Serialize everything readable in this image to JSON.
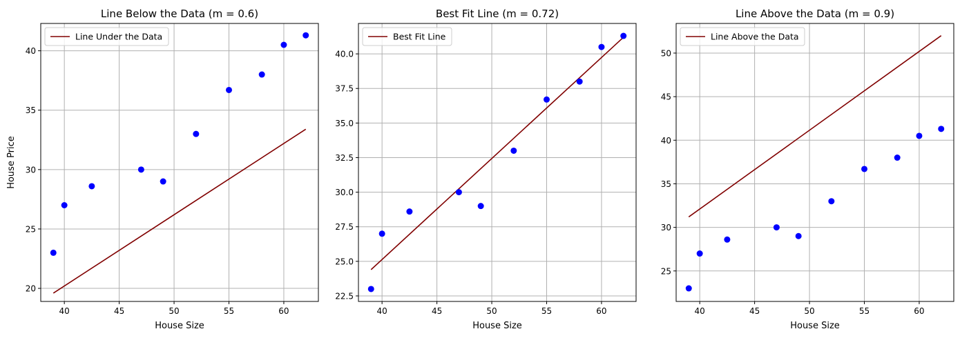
{
  "chart_data": [
    {
      "type": "scatter",
      "title": "Line Below the Data (m = 0.6)",
      "xlabel": "House Size",
      "ylabel": "House Price",
      "xlim": [
        37.85,
        63.15
      ],
      "ylim": [
        18.9,
        42.3
      ],
      "xticks": [
        40,
        45,
        50,
        55,
        60
      ],
      "yticks": [
        20,
        25,
        30,
        35,
        40
      ],
      "grid": true,
      "legend_position": "upper-left",
      "point_color": "#0000ff",
      "line_color": "#800000",
      "points": {
        "x": [
          39,
          40,
          42.5,
          47,
          49,
          52,
          55,
          58,
          60,
          62
        ],
        "y": [
          23,
          27,
          28.6,
          30,
          29,
          33,
          36.7,
          38,
          40.5,
          41.3
        ]
      },
      "line": {
        "name": "Line Under the Data",
        "x": [
          39,
          62
        ],
        "y": [
          19.6,
          33.4
        ]
      }
    },
    {
      "type": "scatter",
      "title": "Best Fit Line (m = 0.72)",
      "xlabel": "House Size",
      "ylabel": "",
      "xlim": [
        37.85,
        63.15
      ],
      "ylim": [
        22.1,
        42.2
      ],
      "xticks": [
        40,
        45,
        50,
        55,
        60
      ],
      "yticks": [
        22.5,
        25.0,
        27.5,
        30.0,
        32.5,
        35.0,
        37.5,
        40.0
      ],
      "ytick_labels": [
        "22.5",
        "25.0",
        "27.5",
        "30.0",
        "32.5",
        "35.0",
        "37.5",
        "40.0"
      ],
      "grid": true,
      "legend_position": "upper-left",
      "point_color": "#0000ff",
      "line_color": "#800000",
      "points": {
        "x": [
          39,
          40,
          42.5,
          47,
          49,
          52,
          55,
          58,
          60,
          62
        ],
        "y": [
          23,
          27,
          28.6,
          30,
          29,
          33,
          36.7,
          38,
          40.5,
          41.3
        ]
      },
      "line": {
        "name": "Best Fit Line",
        "x": [
          39,
          62
        ],
        "y": [
          24.4,
          41.2
        ]
      }
    },
    {
      "type": "scatter",
      "title": "Line Above the Data (m = 0.9)",
      "xlabel": "House Size",
      "ylabel": "",
      "xlim": [
        37.85,
        63.15
      ],
      "ylim": [
        21.5,
        53.4
      ],
      "xticks": [
        40,
        45,
        50,
        55,
        60
      ],
      "yticks": [
        25,
        30,
        35,
        40,
        45,
        50
      ],
      "grid": true,
      "legend_position": "upper-left",
      "point_color": "#0000ff",
      "line_color": "#800000",
      "points": {
        "x": [
          39,
          40,
          42.5,
          47,
          49,
          52,
          55,
          58,
          60,
          62
        ],
        "y": [
          23,
          27,
          28.6,
          30,
          29,
          33,
          36.7,
          38,
          40.5,
          41.3
        ]
      },
      "line": {
        "name": "Line Above the Data",
        "x": [
          39,
          62
        ],
        "y": [
          31.2,
          52
        ]
      }
    }
  ]
}
